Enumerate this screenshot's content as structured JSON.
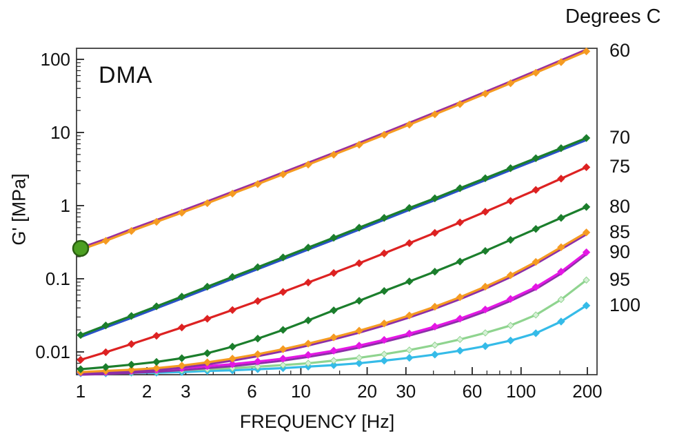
{
  "chart_data": {
    "type": "line",
    "title": "DMA",
    "xlabel": "FREQUENCY [Hz]",
    "ylabel": "G' [MPa]",
    "legend_title": "Degrees C",
    "x_scale": "log",
    "y_scale": "log",
    "xlim": [
      1,
      230
    ],
    "ylim": [
      0.0049,
      140
    ],
    "grid": false,
    "legend_position": "right-outside",
    "x_ticks_major": [
      1,
      2,
      3,
      6,
      10,
      20,
      30,
      60,
      100,
      200
    ],
    "x_tick_labels": [
      "1",
      "2",
      "3",
      "6",
      "10",
      "20",
      "30",
      "60",
      "100",
      "200"
    ],
    "x_ticks_minor": [
      4,
      5,
      7,
      8,
      9,
      15,
      40,
      50,
      70,
      80,
      90,
      150
    ],
    "y_ticks_major": [
      0.01,
      0.1,
      1,
      10,
      100
    ],
    "y_tick_labels": [
      "0.01",
      "0.1",
      "1",
      "10",
      "100"
    ],
    "frame_color": "#3c3c3c",
    "frequencies": [
      1,
      1.3,
      1.7,
      2.21,
      2.88,
      3.76,
      4.89,
      6.37,
      8.3,
      10.8,
      14.1,
      18.4,
      23.9,
      31.1,
      40.6,
      52.8,
      68.8,
      89.6,
      116.7,
      152,
      198
    ],
    "series": [
      {
        "name": "60",
        "color": "#F59B22",
        "pair_color": "#9A2F9E",
        "pair_side": "above",
        "values": [
          0.25,
          0.33,
          0.45,
          0.6,
          0.8,
          1.08,
          1.46,
          1.97,
          2.68,
          3.64,
          4.97,
          6.8,
          9.3,
          12.8,
          17.7,
          24.4,
          33.9,
          47.1,
          65.6,
          91.7,
          128.6
        ]
      },
      {
        "name": "70",
        "color": "#1B7E2C",
        "pair_color": "#2A52C8",
        "pair_side": "below",
        "values": [
          0.017,
          0.023,
          0.031,
          0.042,
          0.057,
          0.078,
          0.106,
          0.144,
          0.196,
          0.267,
          0.364,
          0.5,
          0.68,
          0.93,
          1.26,
          1.73,
          2.37,
          3.25,
          4.45,
          6.1,
          8.4
        ]
      },
      {
        "name": "75",
        "color": "#DD2222",
        "values": [
          0.0078,
          0.0099,
          0.0128,
          0.0166,
          0.0216,
          0.0284,
          0.0374,
          0.0496,
          0.066,
          0.089,
          0.12,
          0.163,
          0.223,
          0.307,
          0.424,
          0.589,
          0.825,
          1.16,
          1.64,
          2.34,
          3.35
        ]
      },
      {
        "name": "80",
        "color": "#1B7E2C",
        "values": [
          0.0058,
          0.0062,
          0.0067,
          0.0073,
          0.0082,
          0.0096,
          0.0118,
          0.0152,
          0.02,
          0.027,
          0.037,
          0.05,
          0.068,
          0.092,
          0.125,
          0.172,
          0.24,
          0.34,
          0.48,
          0.68,
          0.96
        ]
      },
      {
        "name": "85",
        "color": "#F59B22",
        "pair_color": "#8C2FA8",
        "pair_side": "below",
        "values": [
          0.0053,
          0.0055,
          0.0057,
          0.006,
          0.0065,
          0.0072,
          0.0081,
          0.0093,
          0.0109,
          0.013,
          0.0158,
          0.0195,
          0.0245,
          0.0315,
          0.0415,
          0.056,
          0.078,
          0.112,
          0.17,
          0.27,
          0.43
        ]
      },
      {
        "name": "90",
        "color": "#E417E4",
        "pair_color": "#8C2FA8",
        "pair_side": "below",
        "values": [
          0.0052,
          0.0053,
          0.0055,
          0.0057,
          0.006,
          0.0064,
          0.0068,
          0.0074,
          0.0081,
          0.0091,
          0.0104,
          0.0122,
          0.0146,
          0.0178,
          0.0222,
          0.0285,
          0.038,
          0.053,
          0.077,
          0.125,
          0.23
        ]
      },
      {
        "name": "95",
        "color": "#8FD48F",
        "marker_fill": "#D6F0D6",
        "values": [
          0.0052,
          0.0052,
          0.0053,
          0.0054,
          0.0056,
          0.0058,
          0.006,
          0.0063,
          0.0066,
          0.007,
          0.0076,
          0.0083,
          0.0093,
          0.0106,
          0.0124,
          0.0148,
          0.0182,
          0.023,
          0.032,
          0.052,
          0.096
        ]
      },
      {
        "name": "100",
        "color": "#35BBE8",
        "values": [
          0.0051,
          0.0051,
          0.0052,
          0.0052,
          0.0053,
          0.0055,
          0.0056,
          0.0058,
          0.006,
          0.0063,
          0.0066,
          0.007,
          0.0076,
          0.0083,
          0.0092,
          0.0104,
          0.012,
          0.0143,
          0.018,
          0.026,
          0.043
        ]
      }
    ],
    "annotation_point": {
      "frequency": 1,
      "value": 0.26,
      "fill": "#4C9F22",
      "stroke": "#2A5E12"
    }
  }
}
